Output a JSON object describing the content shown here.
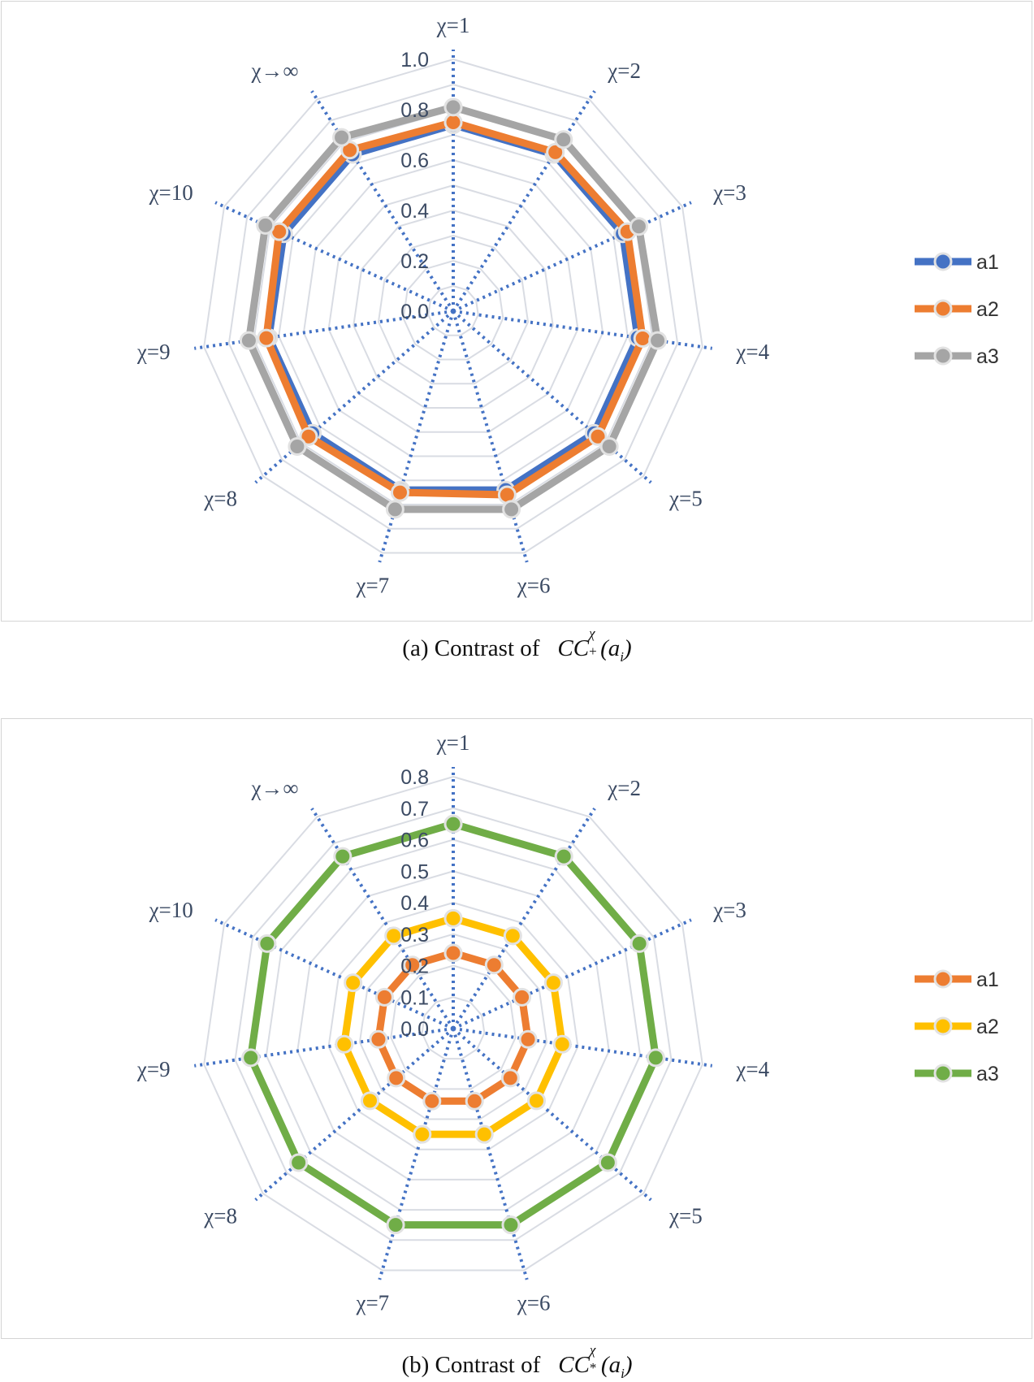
{
  "chart_data": [
    {
      "type": "radar",
      "caption_prefix": "(a) Contrast of",
      "caption_math": {
        "base": "CC",
        "sup": "χ",
        "sub": "+",
        "arg": "a",
        "arg_sub": "i"
      },
      "categories": [
        "χ=1",
        "χ=2",
        "χ=3",
        "χ=4",
        "χ=5",
        "χ=6",
        "χ=7",
        "χ=8",
        "χ=9",
        "χ=10",
        "χ→∞"
      ],
      "rlim": [
        0.0,
        1.0
      ],
      "ticks": [
        "0.0",
        "0.2",
        "0.4",
        "0.6",
        "0.8",
        "1.0"
      ],
      "tick_values": [
        0,
        0.2,
        0.4,
        0.6,
        0.8,
        1.0
      ],
      "grid_values": [
        0.1,
        0.2,
        0.3,
        0.4,
        0.5,
        0.6,
        0.7,
        0.8,
        0.9,
        1.0
      ],
      "legend_position": "right",
      "series": [
        {
          "name": "a1",
          "color": "#4472C4",
          "values": [
            0.74,
            0.74,
            0.74,
            0.74,
            0.74,
            0.74,
            0.74,
            0.74,
            0.74,
            0.74,
            0.74
          ]
        },
        {
          "name": "a2",
          "color": "#ED7D31",
          "values": [
            0.75,
            0.75,
            0.76,
            0.76,
            0.76,
            0.76,
            0.75,
            0.76,
            0.75,
            0.76,
            0.76
          ]
        },
        {
          "name": "a3",
          "color": "#A5A5A5",
          "values": [
            0.81,
            0.81,
            0.81,
            0.82,
            0.82,
            0.82,
            0.82,
            0.82,
            0.82,
            0.82,
            0.82
          ]
        }
      ]
    },
    {
      "type": "radar",
      "caption_prefix": "(b) Contrast of",
      "caption_math": {
        "base": "CC",
        "sup": "χ",
        "sub": "*",
        "arg": "a",
        "arg_sub": "i"
      },
      "categories": [
        "χ=1",
        "χ=2",
        "χ=3",
        "χ=4",
        "χ=5",
        "χ=6",
        "χ=7",
        "χ=8",
        "χ=9",
        "χ=10",
        "χ→∞"
      ],
      "rlim": [
        0.0,
        0.8
      ],
      "ticks": [
        "0.0",
        "0.1",
        "0.2",
        "0.3",
        "0.4",
        "0.5",
        "0.6",
        "0.7",
        "0.8"
      ],
      "tick_values": [
        0,
        0.1,
        0.2,
        0.3,
        0.4,
        0.5,
        0.6,
        0.7,
        0.8
      ],
      "grid_values": [
        0.1,
        0.2,
        0.3,
        0.4,
        0.5,
        0.6,
        0.7,
        0.8
      ],
      "legend_position": "right",
      "series": [
        {
          "name": "a1",
          "color": "#ED7D31",
          "values": [
            0.24,
            0.24,
            0.24,
            0.24,
            0.24,
            0.24,
            0.24,
            0.24,
            0.24,
            0.24,
            0.24
          ]
        },
        {
          "name": "a2",
          "color": "#FFC000",
          "values": [
            0.35,
            0.35,
            0.35,
            0.35,
            0.35,
            0.35,
            0.35,
            0.35,
            0.35,
            0.35,
            0.35
          ]
        },
        {
          "name": "a3",
          "color": "#70AD47",
          "values": [
            0.65,
            0.65,
            0.65,
            0.65,
            0.65,
            0.65,
            0.65,
            0.65,
            0.65,
            0.65,
            0.65
          ]
        }
      ]
    }
  ]
}
